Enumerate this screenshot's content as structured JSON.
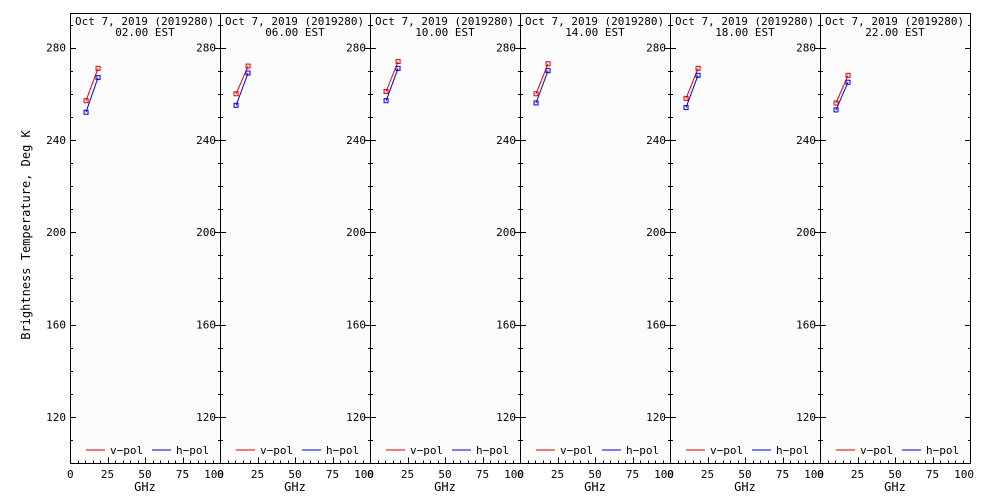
{
  "figure": {
    "ylabel": "Brightness Temperature, Deg K",
    "xlabel": "GHz",
    "xticks": [
      "0",
      "25",
      "50",
      "75",
      "100"
    ],
    "yticks": [
      "120",
      "160",
      "200",
      "240",
      "280"
    ],
    "legend": [
      "v−pol",
      "h−pol"
    ],
    "colors": {
      "v_pol": "#e00000",
      "h_pol": "#0000dd"
    }
  },
  "chart_data": [
    {
      "type": "line",
      "title": "Oct  7, 2019 (2019280)",
      "subtitle": "02.00 EST",
      "xlabel": "GHz",
      "ylabel": "Brightness Temperature, Deg K",
      "xlim": [
        0,
        100
      ],
      "ylim": [
        100,
        295
      ],
      "series": [
        {
          "name": "v−pol",
          "x": [
            10.7,
            18.7
          ],
          "y": [
            257,
            271
          ]
        },
        {
          "name": "h−pol",
          "x": [
            10.7,
            18.7
          ],
          "y": [
            252,
            267
          ]
        }
      ]
    },
    {
      "type": "line",
      "title": "Oct  7, 2019 (2019280)",
      "subtitle": "06.00 EST",
      "xlabel": "GHz",
      "xlim": [
        0,
        100
      ],
      "ylim": [
        100,
        295
      ],
      "series": [
        {
          "name": "v−pol",
          "x": [
            10.7,
            18.7
          ],
          "y": [
            260,
            272
          ]
        },
        {
          "name": "h−pol",
          "x": [
            10.7,
            18.7
          ],
          "y": [
            255,
            269
          ]
        }
      ]
    },
    {
      "type": "line",
      "title": "Oct  7, 2019 (2019280)",
      "subtitle": "10.00 EST",
      "xlabel": "GHz",
      "xlim": [
        0,
        100
      ],
      "ylim": [
        100,
        295
      ],
      "series": [
        {
          "name": "v−pol",
          "x": [
            10.7,
            18.7
          ],
          "y": [
            261,
            274
          ]
        },
        {
          "name": "h−pol",
          "x": [
            10.7,
            18.7
          ],
          "y": [
            257,
            271
          ]
        }
      ]
    },
    {
      "type": "line",
      "title": "Oct  7, 2019 (2019280)",
      "subtitle": "14.00 EST",
      "xlabel": "GHz",
      "xlim": [
        0,
        100
      ],
      "ylim": [
        100,
        295
      ],
      "series": [
        {
          "name": "v−pol",
          "x": [
            10.7,
            18.7
          ],
          "y": [
            260,
            273
          ]
        },
        {
          "name": "h−pol",
          "x": [
            10.7,
            18.7
          ],
          "y": [
            256,
            270
          ]
        }
      ]
    },
    {
      "type": "line",
      "title": "Oct  7, 2019 (2019280)",
      "subtitle": "18.00 EST",
      "xlabel": "GHz",
      "xlim": [
        0,
        100
      ],
      "ylim": [
        100,
        295
      ],
      "series": [
        {
          "name": "v−pol",
          "x": [
            10.7,
            18.7
          ],
          "y": [
            258,
            271
          ]
        },
        {
          "name": "h−pol",
          "x": [
            10.7,
            18.7
          ],
          "y": [
            254,
            268
          ]
        }
      ]
    },
    {
      "type": "line",
      "title": "Oct  7, 2019 (2019280)",
      "subtitle": "22.00 EST",
      "xlabel": "GHz",
      "xlim": [
        0,
        100
      ],
      "ylim": [
        100,
        295
      ],
      "series": [
        {
          "name": "v−pol",
          "x": [
            10.7,
            18.7
          ],
          "y": [
            256,
            268
          ]
        },
        {
          "name": "h−pol",
          "x": [
            10.7,
            18.7
          ],
          "y": [
            253,
            265
          ]
        }
      ]
    }
  ]
}
